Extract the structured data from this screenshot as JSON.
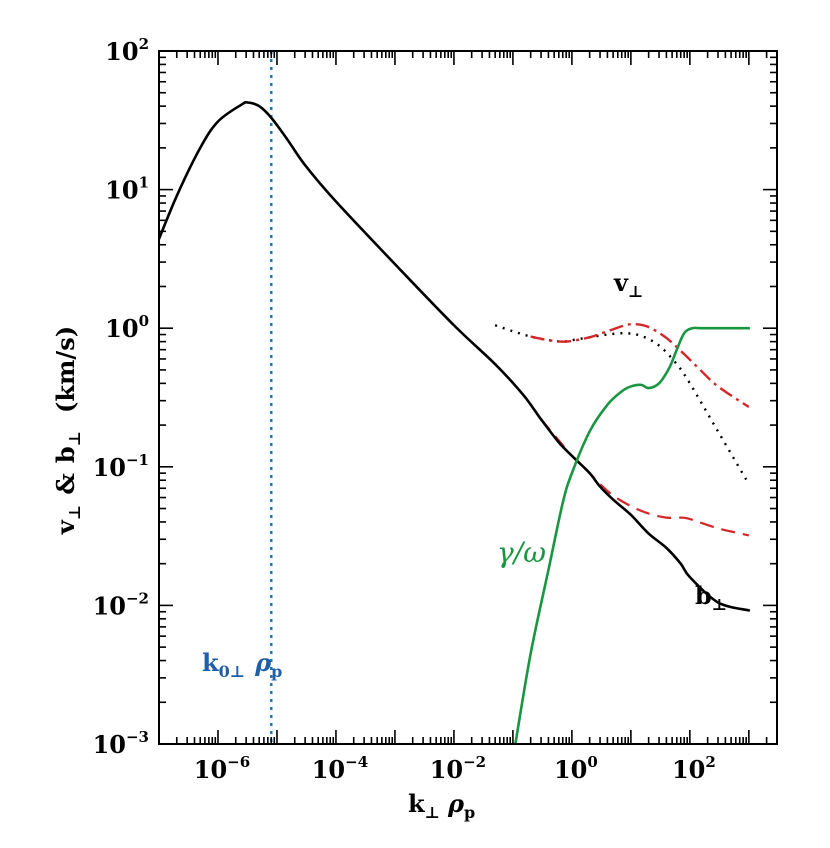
{
  "chart_data": {
    "type": "line",
    "xscale": "log",
    "yscale": "log",
    "xlim": [
      1e-07,
      3000
    ],
    "ylim": [
      0.001,
      100
    ],
    "x_ticks": [
      {
        "value": 1e-06,
        "base": "10",
        "exp": "−6"
      },
      {
        "value": 0.0001,
        "base": "10",
        "exp": "−4"
      },
      {
        "value": 0.01,
        "base": "10",
        "exp": "−2"
      },
      {
        "value": 1,
        "base": "10",
        "exp": "0"
      },
      {
        "value": 100,
        "base": "10",
        "exp": "2"
      }
    ],
    "y_ticks": [
      {
        "value": 0.001,
        "base": "10",
        "exp": "−3"
      },
      {
        "value": 0.01,
        "base": "10",
        "exp": "−2"
      },
      {
        "value": 0.1,
        "base": "10",
        "exp": "−1"
      },
      {
        "value": 1,
        "base": "10",
        "exp": "0"
      },
      {
        "value": 10,
        "base": "10",
        "exp": "1"
      },
      {
        "value": 100,
        "base": "10",
        "exp": "2"
      }
    ],
    "xlabel": {
      "main": "k",
      "sub1": "⊥",
      "greek": "ρ",
      "sub2": "p"
    },
    "ylabel": {
      "v": "v",
      "vsub": "⊥",
      "amp": "&",
      "b": "b",
      "bsub": "⊥",
      "unit": "(km/s)"
    },
    "series": [
      {
        "key": "b_perp",
        "color": "#000000",
        "dash": "",
        "width": 2.6,
        "x": [
          8.7e-08,
          2e-07,
          5e-07,
          1e-06,
          2.5e-06,
          3.2e-06,
          5e-06,
          8e-06,
          1.5e-05,
          3e-05,
          0.0001,
          0.001,
          0.01,
          0.05,
          0.15,
          0.3,
          0.6,
          1,
          2,
          3,
          5,
          10,
          20,
          40,
          70,
          100,
          300,
          1000
        ],
        "y": [
          3.8,
          9.0,
          20,
          31,
          41,
          42.5,
          40,
          33,
          23,
          15,
          8.2,
          2.9,
          1.05,
          0.55,
          0.33,
          0.22,
          0.15,
          0.12,
          0.09,
          0.072,
          0.058,
          0.045,
          0.033,
          0.026,
          0.02,
          0.016,
          0.0105,
          0.0092
        ]
      },
      {
        "key": "b_perp_dashed",
        "color": "#d62728",
        "dash": "14,8",
        "width": 2.2,
        "x": [
          0.3,
          0.6,
          1,
          2,
          3,
          5,
          10,
          20,
          40,
          70,
          100,
          300,
          1000
        ],
        "y": [
          0.22,
          0.155,
          0.12,
          0.09,
          0.075,
          0.062,
          0.052,
          0.046,
          0.043,
          0.043,
          0.042,
          0.036,
          0.032
        ]
      },
      {
        "key": "v_perp_dotted",
        "color": "#000000",
        "dash": "2,6",
        "width": 2.4,
        "x": [
          0.05,
          0.1,
          0.2,
          0.4,
          0.7,
          1,
          2,
          4,
          8,
          15,
          30,
          60,
          100,
          300,
          1000
        ],
        "y": [
          1.05,
          0.95,
          0.87,
          0.82,
          0.8,
          0.82,
          0.86,
          0.9,
          0.92,
          0.88,
          0.75,
          0.55,
          0.4,
          0.18,
          0.075
        ]
      },
      {
        "key": "v_perp_dashdot",
        "color": "#d62728",
        "dash": "14,5,3,5",
        "width": 2.4,
        "x": [
          0.2,
          0.4,
          0.7,
          1,
          2,
          4,
          8,
          12,
          20,
          40,
          80,
          150,
          300,
          1000
        ],
        "y": [
          0.87,
          0.82,
          0.8,
          0.81,
          0.86,
          0.95,
          1.05,
          1.07,
          1.02,
          0.85,
          0.65,
          0.5,
          0.38,
          0.27
        ]
      },
      {
        "key": "gamma_omega",
        "color": "#1a9641",
        "dash": "",
        "width": 2.6,
        "x": [
          0.11,
          0.2,
          0.4,
          0.7,
          1,
          2,
          4,
          7,
          10,
          15,
          20,
          30,
          45,
          60,
          80,
          110,
          150,
          250,
          500,
          1000
        ],
        "y": [
          0.001,
          0.0045,
          0.018,
          0.055,
          0.09,
          0.18,
          0.28,
          0.35,
          0.38,
          0.39,
          0.37,
          0.4,
          0.52,
          0.7,
          0.92,
          1.0,
          1.0,
          1.0,
          1.0,
          1.0
        ]
      }
    ],
    "vline": {
      "x": 8e-06,
      "color": "#1f77b4",
      "dash": "3,5"
    }
  },
  "annotations": {
    "v_label": {
      "main": "v",
      "sub": "⊥"
    },
    "b_label": {
      "main": "b",
      "sub": "⊥"
    },
    "gamma_label": "γ/ω",
    "k0_label": {
      "main": "k",
      "sub": "0⊥",
      "greek": "ρ",
      "greek_sub": "p"
    }
  },
  "colors": {
    "black": "#000000",
    "red": "#d62728",
    "green": "#1a9641",
    "blue": "#1f77b4",
    "annot_blue": "#1f5fa8"
  }
}
